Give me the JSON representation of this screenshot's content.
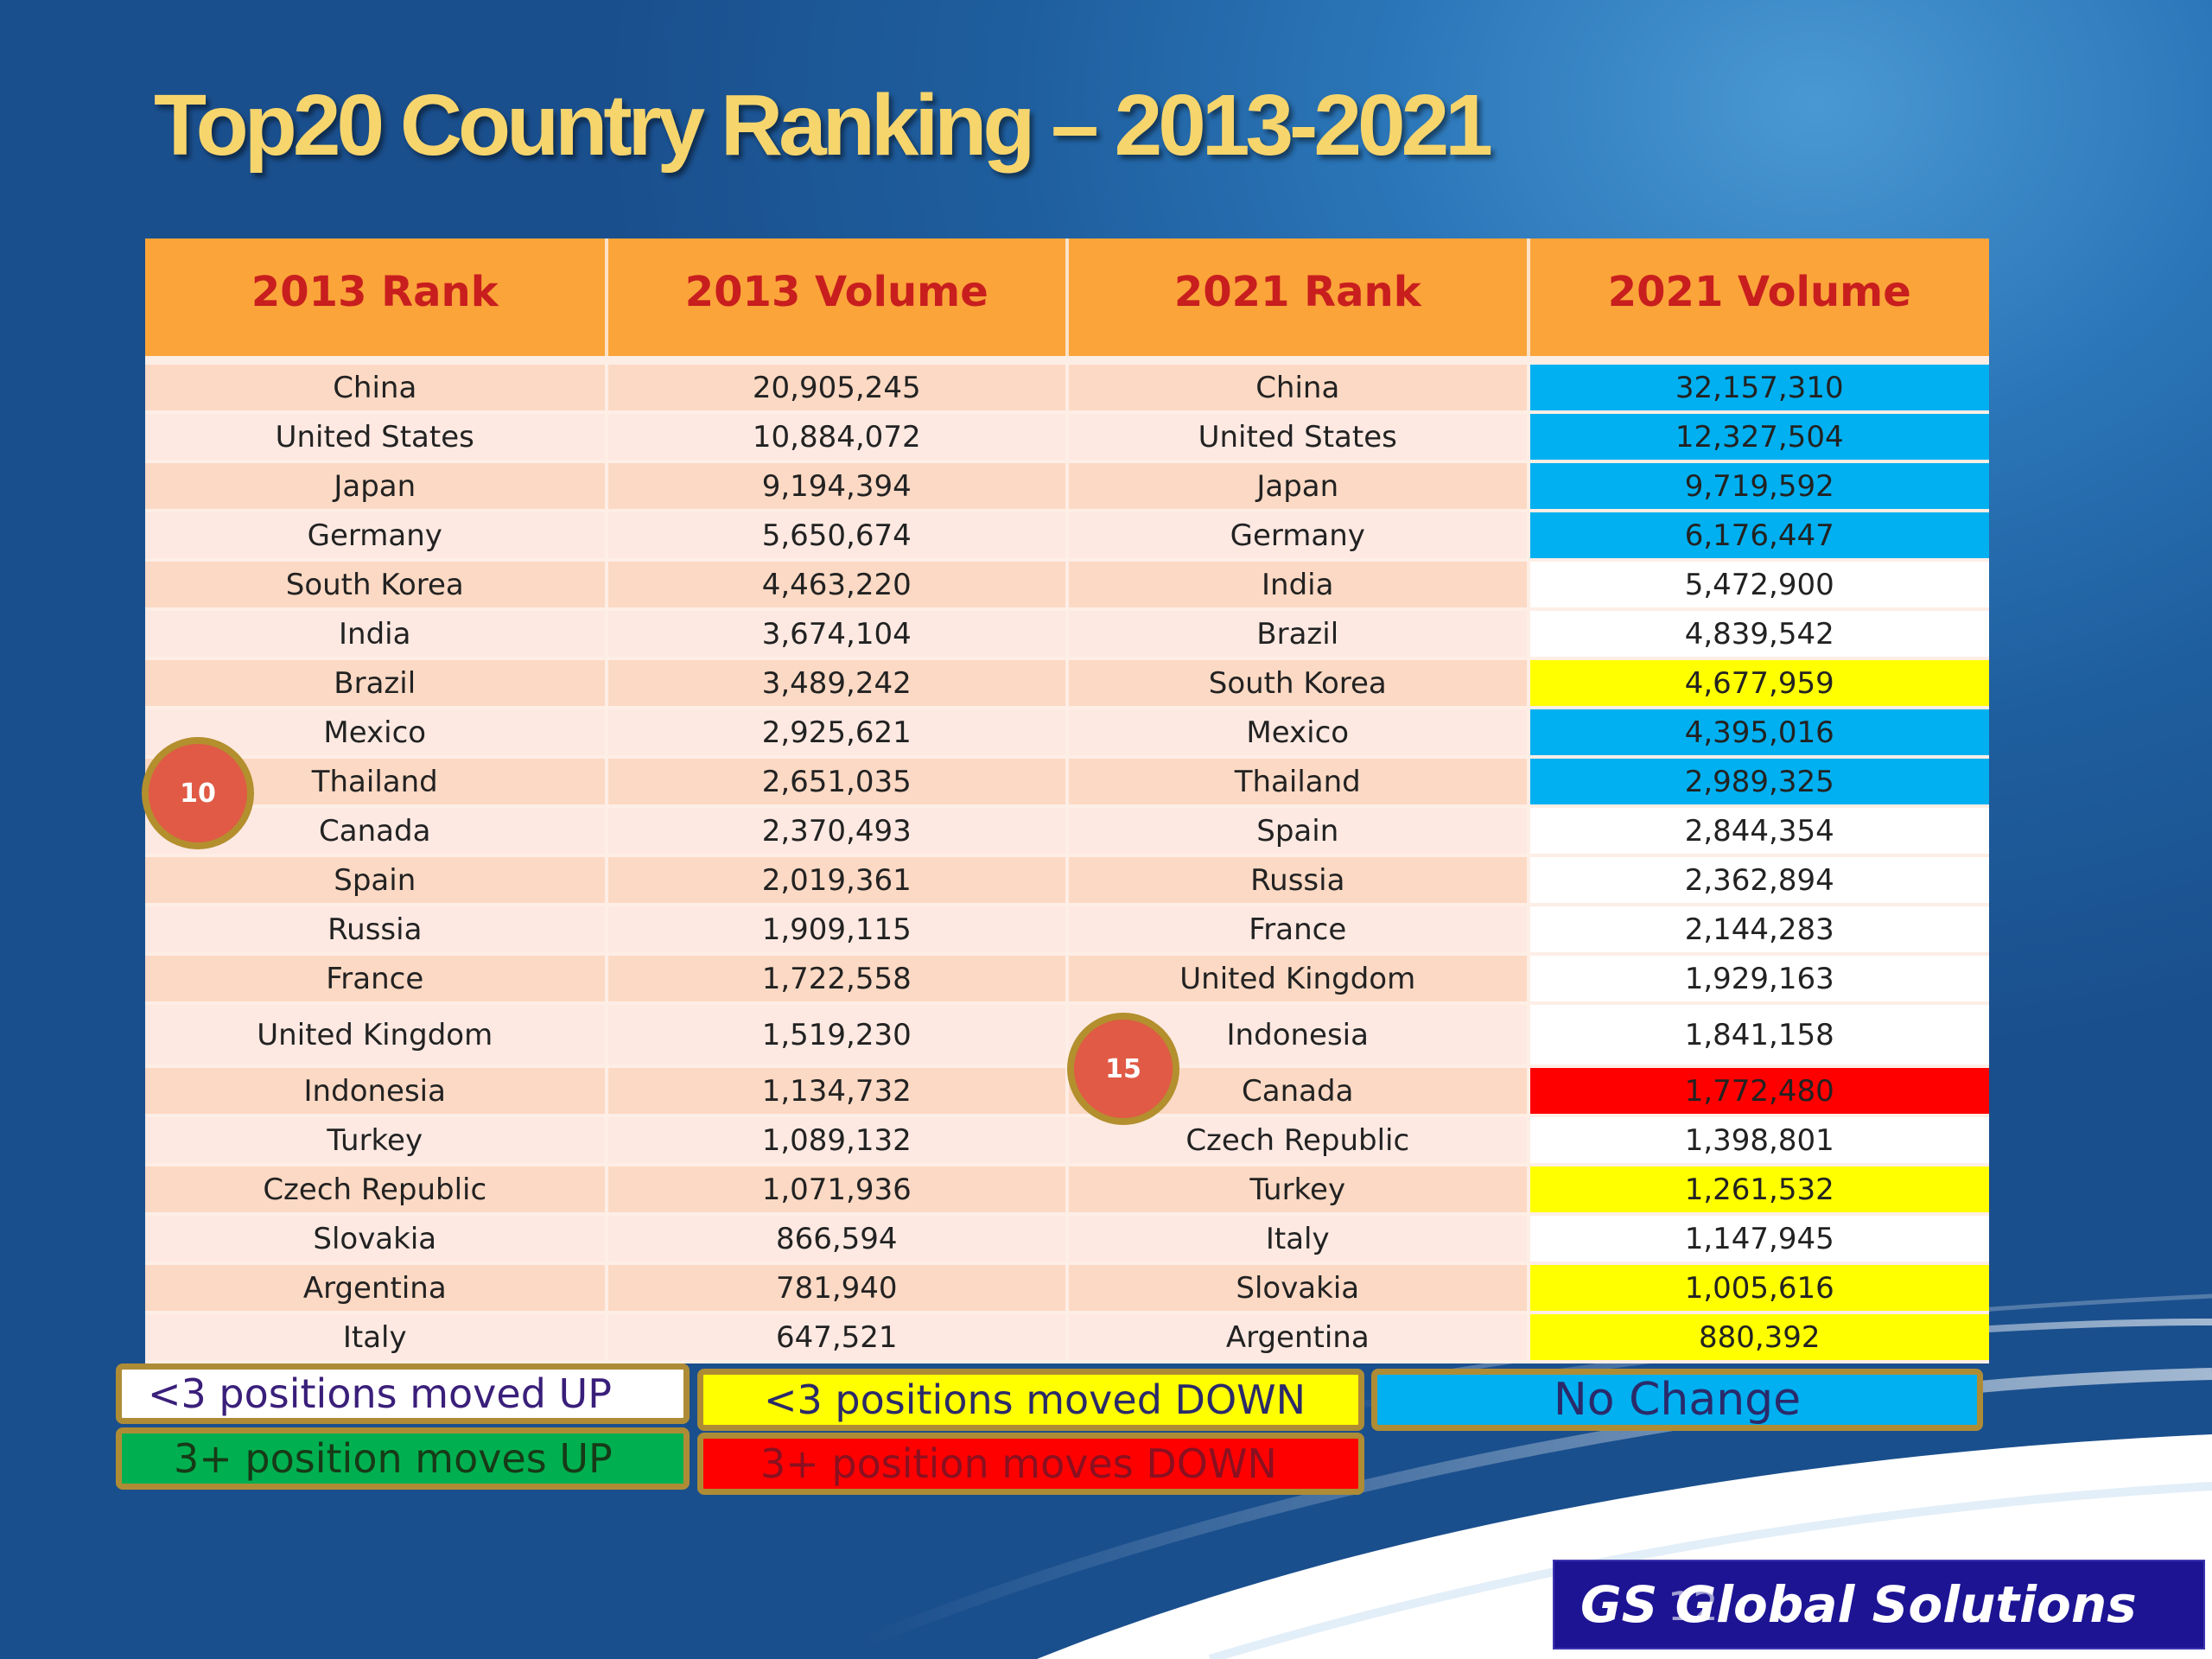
{
  "title": "Top20 Country Ranking – 2013-2021",
  "table": {
    "headers": [
      "2013 Rank",
      "2013 Volume",
      "2021 Rank",
      "2021 Volume"
    ],
    "rows": [
      {
        "rank2013": "China",
        "volume2013": "20,905,245",
        "rank2021": "China",
        "volume2021": "32,157,310",
        "highlight": "blue"
      },
      {
        "rank2013": "United States",
        "volume2013": "10,884,072",
        "rank2021": "United States",
        "volume2021": "12,327,504",
        "highlight": "blue"
      },
      {
        "rank2013": "Japan",
        "volume2013": "9,194,394",
        "rank2021": "Japan",
        "volume2021": "9,719,592",
        "highlight": "blue"
      },
      {
        "rank2013": "Germany",
        "volume2013": "5,650,674",
        "rank2021": "Germany",
        "volume2021": "6,176,447",
        "highlight": "blue"
      },
      {
        "rank2013": "South Korea",
        "volume2013": "4,463,220",
        "rank2021": "India",
        "volume2021": "5,472,900",
        "highlight": "white"
      },
      {
        "rank2013": "India",
        "volume2013": "3,674,104",
        "rank2021": "Brazil",
        "volume2021": "4,839,542",
        "highlight": "white"
      },
      {
        "rank2013": "Brazil",
        "volume2013": "3,489,242",
        "rank2021": "South Korea",
        "volume2021": "4,677,959",
        "highlight": "yellow"
      },
      {
        "rank2013": "Mexico",
        "volume2013": "2,925,621",
        "rank2021": "Mexico",
        "volume2021": "4,395,016",
        "highlight": "blue"
      },
      {
        "rank2013": "Thailand",
        "volume2013": "2,651,035",
        "rank2021": "Thailand",
        "volume2021": "2,989,325",
        "highlight": "blue"
      },
      {
        "rank2013": "Canada",
        "volume2013": "2,370,493",
        "rank2021": "Spain",
        "volume2021": "2,844,354",
        "highlight": "white"
      },
      {
        "rank2013": "Spain",
        "volume2013": "2,019,361",
        "rank2021": "Russia",
        "volume2021": "2,362,894",
        "highlight": "white"
      },
      {
        "rank2013": "Russia",
        "volume2013": "1,909,115",
        "rank2021": "France",
        "volume2021": "2,144,283",
        "highlight": "white"
      },
      {
        "rank2013": "France",
        "volume2013": "1,722,558",
        "rank2021": "United Kingdom",
        "volume2021": "1,929,163",
        "highlight": "white"
      },
      {
        "rank2013": "United Kingdom",
        "volume2013": "1,519,230",
        "rank2021": "Indonesia",
        "volume2021": "1,841,158",
        "highlight": "white"
      },
      {
        "rank2013": "Indonesia",
        "volume2013": "1,134,732",
        "rank2021": "Canada",
        "volume2021": "1,772,480",
        "highlight": "red"
      },
      {
        "rank2013": "Turkey",
        "volume2013": "1,089,132",
        "rank2021": "Czech Republic",
        "volume2021": "1,398,801",
        "highlight": "white"
      },
      {
        "rank2013": "Czech Republic",
        "volume2013": "1,071,936",
        "rank2021": "Turkey",
        "volume2021": "1,261,532",
        "highlight": "yellow"
      },
      {
        "rank2013": "Slovakia",
        "volume2013": "866,594",
        "rank2021": "Italy",
        "volume2021": "1,147,945",
        "highlight": "white"
      },
      {
        "rank2013": "Argentina",
        "volume2013": "781,940",
        "rank2021": "Slovakia",
        "volume2021": "1,005,616",
        "highlight": "yellow"
      },
      {
        "rank2013": "Italy",
        "volume2013": "647,521",
        "rank2021": "Argentina",
        "volume2021": "880,392",
        "highlight": "yellow"
      }
    ]
  },
  "markers": {
    "left": "10",
    "middle": "15"
  },
  "legend": {
    "up_small": "<3 positions moved UP",
    "down_small": "<3 positions moved DOWN",
    "no_change": "No Change",
    "up_large": "3+ position moves UP",
    "down_large": "3+ position moves DOWN"
  },
  "colors": {
    "up_small": "#ffffff",
    "down_small": "#ffff00",
    "no_change": "#00b0f0",
    "up_large": "#00b050",
    "down_large": "#ff0000",
    "header_bg": "#fba43a",
    "header_text": "#c81e1e",
    "title_text": "#f7d56d"
  },
  "slide_number": "12",
  "logo": {
    "text": "GS Global Solutions"
  }
}
